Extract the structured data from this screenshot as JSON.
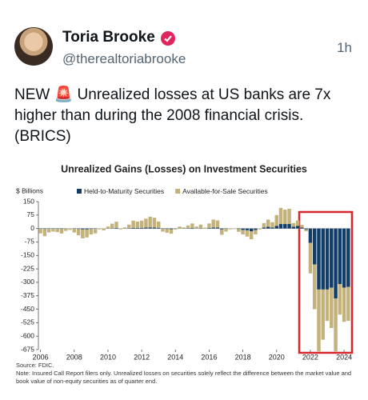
{
  "post": {
    "name": "Toria Brooke",
    "handle": "@therealtoriabrooke",
    "time": "1h",
    "text": "NEW 🚨 Unrealized losses at US banks are 7x higher than during the 2008 financial crisis. (BRICS)"
  },
  "chart_data": {
    "type": "stacked-bar",
    "title": "Unrealized Gains (Losses) on Investment Securities",
    "y_label": "$ Billions",
    "source": "Source: FDIC.",
    "note": "Note: Insured Call Report filers only. Unrealized losses on securities solely reflect the difference between the market value and book value of non-equity securities as of quarter end.",
    "categories": [
      "2006",
      null,
      null,
      null,
      null,
      null,
      null,
      null,
      "2008",
      null,
      null,
      null,
      null,
      null,
      null,
      null,
      "2010",
      null,
      null,
      null,
      null,
      null,
      null,
      null,
      "2012",
      null,
      null,
      null,
      null,
      null,
      null,
      null,
      "2014",
      null,
      null,
      null,
      null,
      null,
      null,
      null,
      "2016",
      null,
      null,
      null,
      null,
      null,
      null,
      null,
      "2018",
      null,
      null,
      null,
      null,
      null,
      null,
      null,
      "2020",
      null,
      null,
      null,
      null,
      null,
      null,
      null,
      "2022",
      null,
      null,
      null,
      null,
      null,
      null,
      null,
      "2024",
      null
    ],
    "series": [
      {
        "name": "Held-to-Maturity Securities",
        "color": "#123d66",
        "values": [
          -2,
          -3,
          -2,
          -2,
          -2,
          -3,
          -1,
          0,
          -2,
          -3,
          -5,
          -5,
          -3,
          -2,
          0,
          0,
          1,
          2,
          3,
          0,
          1,
          2,
          4,
          4,
          4,
          5,
          6,
          5,
          4,
          -2,
          -3,
          -4,
          -1,
          1,
          1,
          2,
          3,
          1,
          2,
          0,
          3,
          5,
          5,
          -5,
          -2,
          0,
          0,
          -3,
          -8,
          -10,
          -15,
          -8,
          0,
          5,
          10,
          5,
          15,
          25,
          25,
          25,
          10,
          15,
          5,
          -5,
          -80,
          -200,
          -340,
          -340,
          -340,
          -330,
          -390,
          -310,
          -330,
          -325
        ]
      },
      {
        "name": "Available-for-Sale Securities",
        "color": "#c4b27c",
        "values": [
          -25,
          -40,
          -20,
          -15,
          -18,
          -25,
          -12,
          -8,
          -20,
          -35,
          -50,
          -45,
          -30,
          -25,
          -5,
          -10,
          10,
          25,
          35,
          -5,
          5,
          20,
          40,
          35,
          40,
          50,
          60,
          55,
          35,
          -15,
          -20,
          -25,
          -5,
          10,
          5,
          15,
          25,
          10,
          20,
          5,
          25,
          45,
          40,
          -30,
          -15,
          -5,
          -3,
          -15,
          -25,
          -35,
          -45,
          -25,
          -5,
          25,
          40,
          30,
          60,
          90,
          80,
          85,
          20,
          30,
          15,
          -10,
          -170,
          -250,
          -345,
          -280,
          -175,
          -225,
          -295,
          -170,
          -190,
          -190
        ]
      }
    ],
    "ylim": [
      -675,
      150
    ],
    "yticks": [
      150,
      75,
      0,
      -75,
      -150,
      -225,
      -300,
      -375,
      -450,
      -525,
      -600,
      -675
    ],
    "grid": false
  }
}
